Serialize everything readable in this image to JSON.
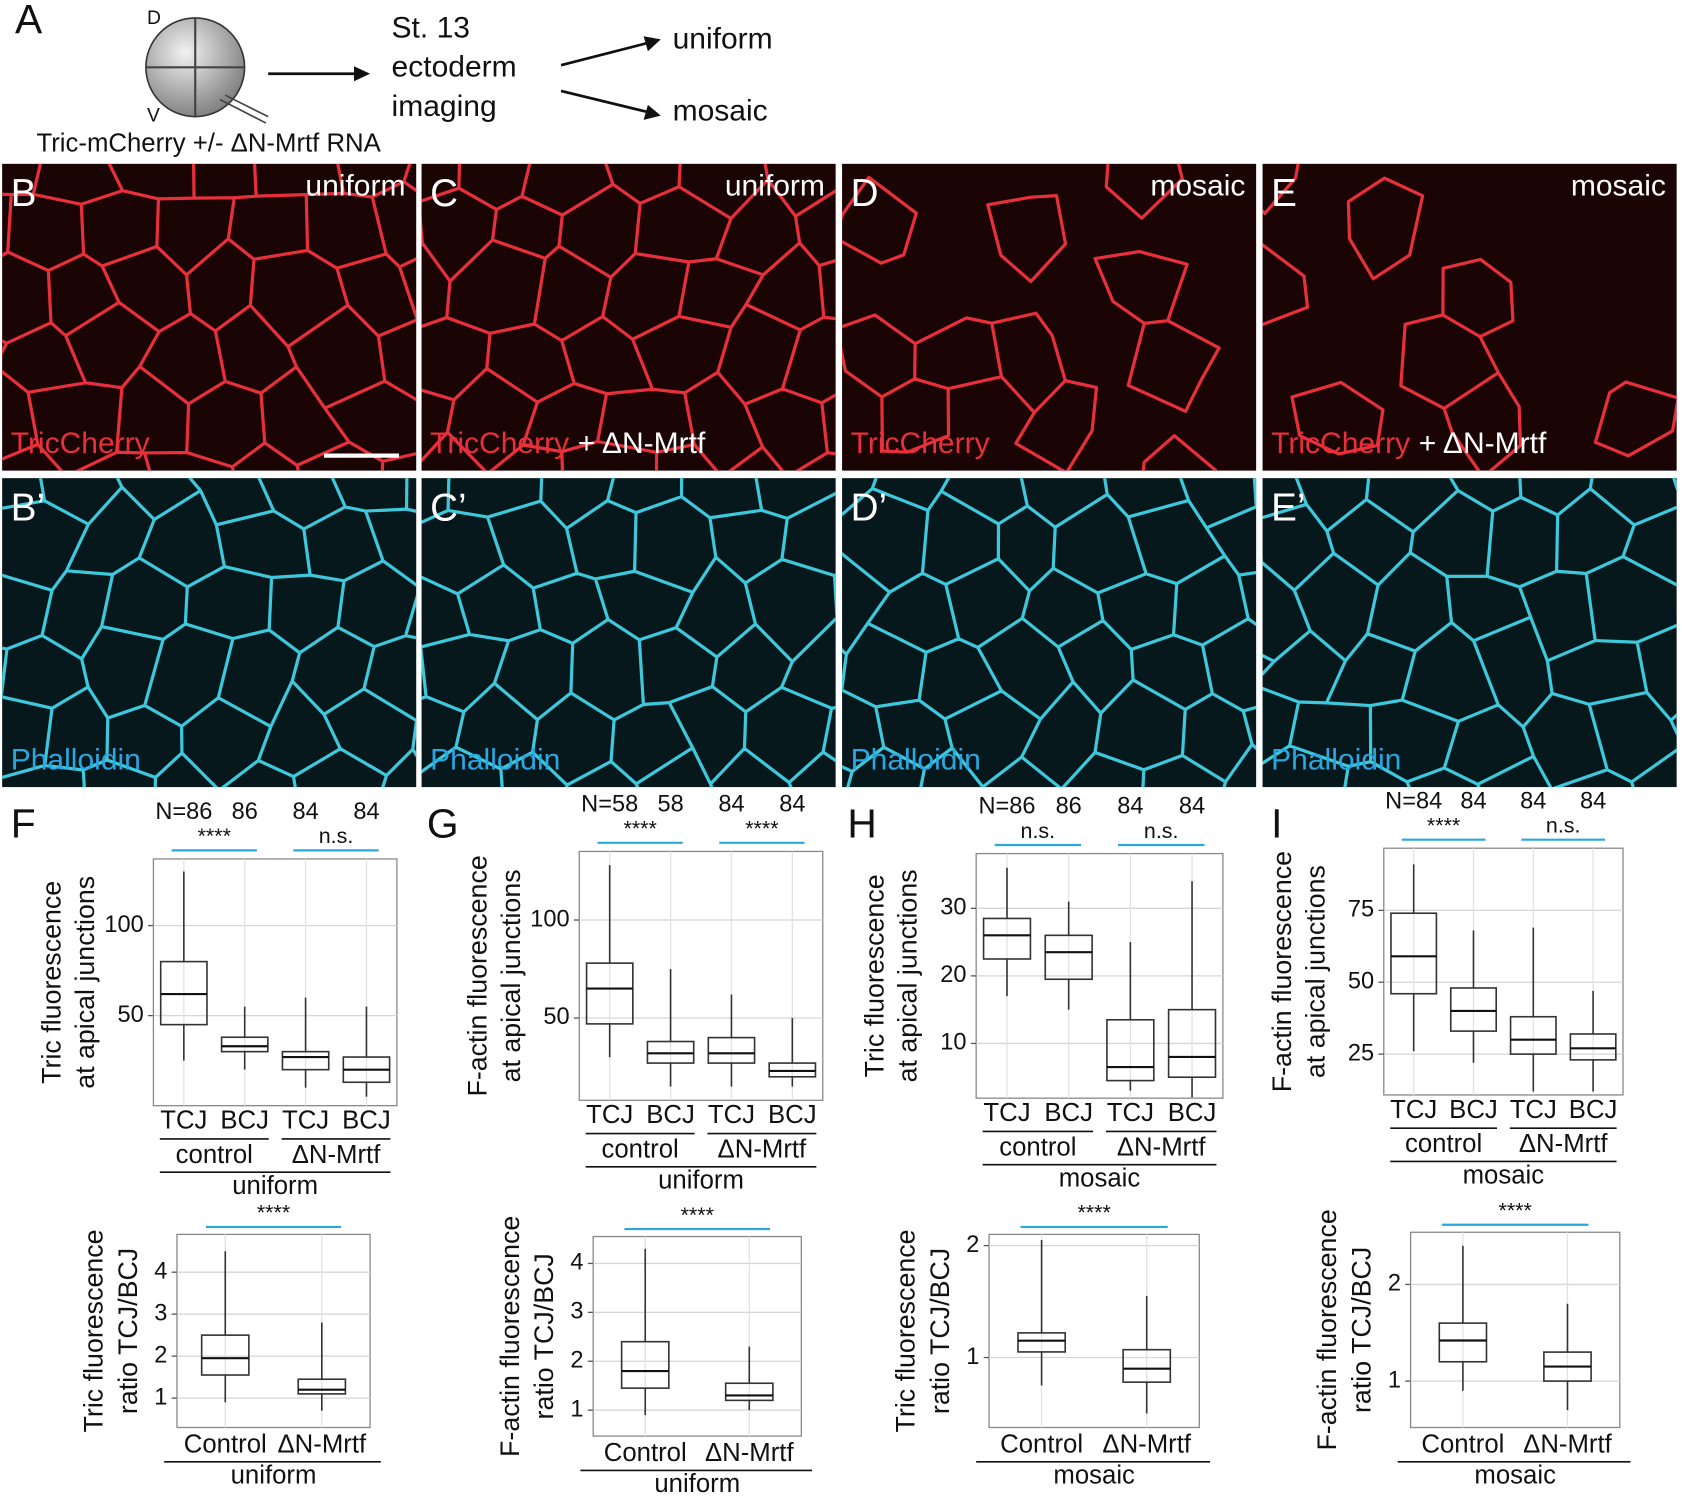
{
  "panel_a": {
    "label": "A",
    "dorsal": "D",
    "ventral": "V",
    "injection": "Tric-mCherry +/- ΔN-Mrtf RNA",
    "step": [
      "St. 13",
      "ectoderm",
      "imaging"
    ],
    "outcomes": [
      "uniform",
      "mosaic"
    ]
  },
  "image_panels": [
    {
      "condition": "uniform",
      "top": {
        "label": "B",
        "stain": "TricCherry"
      },
      "bottom": {
        "label": "B’",
        "stain": "Phalloidin"
      }
    },
    {
      "condition": "uniform",
      "top": {
        "label": "C",
        "stain": "TricCherry",
        "extra": "+ ΔN-Mrtf"
      },
      "bottom": {
        "label": "C’",
        "stain": "Phalloidin"
      }
    },
    {
      "condition": "mosaic",
      "top": {
        "label": "D",
        "stain": "TricCherry"
      },
      "bottom": {
        "label": "D’",
        "stain": "Phalloidin"
      }
    },
    {
      "condition": "mosaic",
      "top": {
        "label": "E",
        "stain": "TricCherry",
        "extra": "+ ΔN-Mrtf"
      },
      "bottom": {
        "label": "E’",
        "stain": "Phalloidin"
      }
    }
  ],
  "chart_data": [
    {
      "type": "box",
      "panel": "F",
      "ylabel": [
        "Tric fluorescence",
        "at apical junctions"
      ],
      "ylim": [
        0,
        137
      ],
      "yticks": [
        50,
        100
      ],
      "grid": true,
      "categories": [
        "TCJ",
        "BCJ",
        "TCJ",
        "BCJ"
      ],
      "n_labels": [
        "N=86",
        "86",
        "84",
        "84"
      ],
      "groups": [
        "control",
        "ΔN-Mrtf"
      ],
      "condition": "uniform",
      "significance": [
        "****",
        "n.s."
      ],
      "boxes": [
        {
          "min": 25,
          "q1": 45,
          "median": 62,
          "q3": 80,
          "max": 130
        },
        {
          "min": 20,
          "q1": 30,
          "median": 33,
          "q3": 38,
          "max": 55
        },
        {
          "min": 10,
          "q1": 20,
          "median": 27,
          "q3": 30,
          "max": 60
        },
        {
          "min": 5,
          "q1": 13,
          "median": 20,
          "q3": 27,
          "max": 55
        }
      ]
    },
    {
      "type": "box",
      "panel": "G",
      "ylabel": [
        "F-actin fluorescence",
        "at apical junctions"
      ],
      "ylim": [
        8,
        135
      ],
      "yticks": [
        50,
        100
      ],
      "grid": true,
      "categories": [
        "TCJ",
        "BCJ",
        "TCJ",
        "BCJ"
      ],
      "n_labels": [
        "N=58",
        "58",
        "84",
        "84"
      ],
      "groups": [
        "control",
        "ΔN-Mrtf"
      ],
      "condition": "uniform",
      "significance": [
        "****",
        "****"
      ],
      "boxes": [
        {
          "min": 30,
          "q1": 47,
          "median": 65,
          "q3": 78,
          "max": 128
        },
        {
          "min": 15,
          "q1": 27,
          "median": 32,
          "q3": 38,
          "max": 75
        },
        {
          "min": 15,
          "q1": 27,
          "median": 32,
          "q3": 40,
          "max": 62
        },
        {
          "min": 15,
          "q1": 20,
          "median": 23,
          "q3": 27,
          "max": 50
        }
      ]
    },
    {
      "type": "box",
      "panel": "H",
      "ylabel": [
        "Tric fluorescence",
        "at apical junctions"
      ],
      "ylim": [
        1.9,
        38.1
      ],
      "yticks": [
        10,
        20,
        30
      ],
      "grid": true,
      "categories": [
        "TCJ",
        "BCJ",
        "TCJ",
        "BCJ"
      ],
      "n_labels": [
        "N=86",
        "86",
        "84",
        "84"
      ],
      "groups": [
        "control",
        "ΔN-Mrtf"
      ],
      "condition": "mosaic",
      "significance": [
        "n.s.",
        "n.s."
      ],
      "boxes": [
        {
          "min": 17,
          "q1": 22.5,
          "median": 26,
          "q3": 28.5,
          "max": 36
        },
        {
          "min": 15,
          "q1": 19.5,
          "median": 23.5,
          "q3": 26,
          "max": 31
        },
        {
          "min": 3,
          "q1": 4.5,
          "median": 6.5,
          "q3": 13.5,
          "max": 25
        },
        {
          "min": 2,
          "q1": 5,
          "median": 8,
          "q3": 15,
          "max": 34
        }
      ]
    },
    {
      "type": "box",
      "panel": "I",
      "ylabel": [
        "F-actin fluorescence",
        "at apical junctions"
      ],
      "ylim": [
        10.8,
        96.6
      ],
      "yticks": [
        25,
        50,
        75
      ],
      "grid": true,
      "categories": [
        "TCJ",
        "BCJ",
        "TCJ",
        "BCJ"
      ],
      "n_labels": [
        "N=84",
        "84",
        "84",
        "84"
      ],
      "groups": [
        "control",
        "ΔN-Mrtf"
      ],
      "condition": "mosaic",
      "significance": [
        "****",
        "n.s."
      ],
      "boxes": [
        {
          "min": 26,
          "q1": 46,
          "median": 59,
          "q3": 74,
          "max": 91
        },
        {
          "min": 22,
          "q1": 33,
          "median": 40,
          "q3": 48,
          "max": 68
        },
        {
          "min": 12,
          "q1": 25,
          "median": 30,
          "q3": 38,
          "max": 69
        },
        {
          "min": 12,
          "q1": 23,
          "median": 27,
          "q3": 32,
          "max": 47
        }
      ]
    },
    {
      "type": "box",
      "ylabel": [
        "Tric fluorescence",
        "ratio TCJ/BCJ"
      ],
      "ylim": [
        0.3,
        4.9
      ],
      "yticks": [
        1,
        2,
        3,
        4
      ],
      "grid": true,
      "categories": [
        "Control",
        "ΔN-Mrtf"
      ],
      "condition": "uniform",
      "significance": [
        "****"
      ],
      "boxes": [
        {
          "min": 0.9,
          "q1": 1.55,
          "median": 1.95,
          "q3": 2.5,
          "max": 4.5
        },
        {
          "min": 0.7,
          "q1": 1.1,
          "median": 1.2,
          "q3": 1.45,
          "max": 2.8
        }
      ]
    },
    {
      "type": "box",
      "ylabel": [
        "F-actin fluorescence",
        "ratio TCJ/BCJ"
      ],
      "ylim": [
        0.47,
        4.55
      ],
      "yticks": [
        1,
        2,
        3,
        4
      ],
      "grid": true,
      "categories": [
        "Control",
        "ΔN-Mrtf"
      ],
      "condition": "uniform",
      "significance": [
        "****"
      ],
      "boxes": [
        {
          "min": 0.9,
          "q1": 1.45,
          "median": 1.8,
          "q3": 2.4,
          "max": 4.3
        },
        {
          "min": 1.0,
          "q1": 1.2,
          "median": 1.3,
          "q3": 1.55,
          "max": 2.3
        }
      ]
    },
    {
      "type": "box",
      "ylabel": [
        "Tric fluorescence",
        "ratio TCJ/BCJ"
      ],
      "ylim": [
        0.375,
        2.1
      ],
      "yticks": [
        1,
        2
      ],
      "grid": true,
      "categories": [
        "Control",
        "ΔN-Mrtf"
      ],
      "condition": "mosaic",
      "significance": [
        "****"
      ],
      "boxes": [
        {
          "min": 0.75,
          "q1": 1.05,
          "median": 1.15,
          "q3": 1.22,
          "max": 2.05
        },
        {
          "min": 0.5,
          "q1": 0.78,
          "median": 0.9,
          "q3": 1.07,
          "max": 1.55
        }
      ]
    },
    {
      "type": "box",
      "ylabel": [
        "F-actin fluorescence",
        "ratio TCJ/BCJ"
      ],
      "ylim": [
        0.52,
        2.54
      ],
      "yticks": [
        1,
        2
      ],
      "grid": true,
      "categories": [
        "Control",
        "ΔN-Mrtf"
      ],
      "condition": "mosaic",
      "significance": [
        "****"
      ],
      "boxes": [
        {
          "min": 0.9,
          "q1": 1.2,
          "median": 1.42,
          "q3": 1.6,
          "max": 2.4
        },
        {
          "min": 0.7,
          "q1": 1.0,
          "median": 1.15,
          "q3": 1.3,
          "max": 1.8
        }
      ]
    }
  ]
}
